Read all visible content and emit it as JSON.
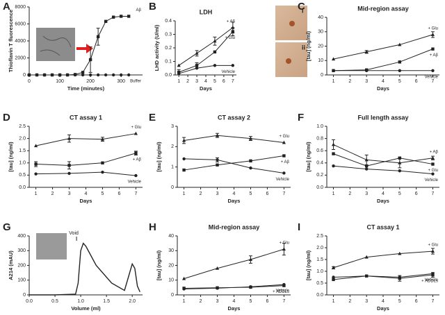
{
  "chart_data": [
    {
      "type": "line",
      "panel": "A",
      "x_label": "Time (minutes)",
      "y_label": "Thioflavin T fluorescence",
      "x": [
        0,
        25,
        50,
        75,
        100,
        125,
        150,
        175,
        200,
        225,
        250,
        275,
        300,
        325
      ],
      "xlim": [
        0,
        370
      ],
      "xticks": [
        0,
        100,
        200,
        300
      ],
      "ylim": [
        0,
        8000
      ],
      "yticks": [
        0,
        2000,
        4000,
        6000,
        8000
      ],
      "series": [
        {
          "name": "Aβ",
          "color": "#222222",
          "marker": "square",
          "values": [
            0,
            0,
            0,
            0,
            0,
            0,
            50,
            300,
            1800,
            4500,
            6300,
            6800,
            6900,
            6900
          ],
          "errors": [
            null,
            null,
            null,
            null,
            null,
            null,
            null,
            null,
            1500,
            1000,
            null,
            null,
            null,
            null
          ]
        },
        {
          "name": "Buffer",
          "color": "#222222",
          "marker": "circle",
          "values": [
            0,
            0,
            0,
            0,
            0,
            0,
            0,
            0,
            0,
            0,
            0,
            0,
            0,
            0
          ]
        }
      ]
    },
    {
      "type": "line",
      "panel": "B",
      "title": "LDH",
      "x_label": "Days",
      "y_label": "LHD activity (U/ml)",
      "insets": [
        "i",
        "ii"
      ],
      "x": [
        1,
        3,
        5,
        7
      ],
      "xlim": [
        0.6,
        7.4
      ],
      "xticks": [
        1,
        2,
        3,
        4,
        5,
        6,
        7
      ],
      "ylim": [
        0,
        0.4
      ],
      "yticks": [
        {
          "value": 0,
          "label": "0.0"
        },
        0.1,
        0.2,
        0.3,
        0.4
      ],
      "series": [
        {
          "name": "+ Aβ",
          "color": "#222222",
          "marker": "triangle",
          "values": [
            0.07,
            0.16,
            0.25,
            0.35
          ],
          "errors": [
            null,
            0.02,
            0.03,
            0.04
          ]
        },
        {
          "name": "+ Glu",
          "color": "#222222",
          "marker": "square",
          "values": [
            0.02,
            0.07,
            0.17,
            0.32
          ],
          "errors": [
            0.02,
            0.02,
            null,
            0.03
          ]
        },
        {
          "name": "Vehicle",
          "color": "#222222",
          "marker": "circle",
          "values": [
            0.01,
            0.05,
            0.07,
            0.07
          ]
        }
      ]
    },
    {
      "type": "line",
      "panel": "C",
      "title": "Mid-region assay",
      "x_label": "Days",
      "y_label": "[tau] (ng/ml)",
      "x": [
        1,
        3,
        5,
        7
      ],
      "xlim": [
        0.6,
        7.4
      ],
      "xticks": [
        1,
        2,
        3,
        4,
        5,
        6,
        7
      ],
      "ylim": [
        0,
        40
      ],
      "yticks": [
        0,
        10,
        20,
        30,
        40
      ],
      "series": [
        {
          "name": "+ Glu",
          "color": "#222222",
          "marker": "triangle",
          "values": [
            11,
            16,
            21,
            28
          ],
          "errors": [
            null,
            1,
            null,
            2
          ]
        },
        {
          "name": "+ Aβ",
          "color": "#222222",
          "marker": "square",
          "values": [
            3,
            3.5,
            9,
            18
          ]
        },
        {
          "name": "Vehicle",
          "color": "#222222",
          "marker": "circle",
          "values": [
            3,
            3,
            3,
            3
          ]
        }
      ]
    },
    {
      "type": "line",
      "panel": "D",
      "title": "CT assay 1",
      "x_label": "Days",
      "y_label": "[tau] (ng/ml)",
      "x": [
        1,
        3,
        5,
        7
      ],
      "xlim": [
        0.6,
        7.4
      ],
      "xticks": [
        1,
        2,
        3,
        4,
        5,
        6,
        7
      ],
      "ylim": [
        0,
        2.5
      ],
      "yticks": [
        {
          "value": 0,
          "label": "0.0"
        },
        0.5,
        {
          "value": 1,
          "label": "1.0"
        },
        1.5,
        {
          "value": 2,
          "label": "2.0"
        },
        2.5
      ],
      "series": [
        {
          "name": "+ Glu",
          "color": "#222222",
          "marker": "triangle",
          "values": [
            1.7,
            2.0,
            1.97,
            2.2
          ],
          "errors": [
            null,
            0.15,
            0.08,
            null
          ]
        },
        {
          "name": "+ Aβ",
          "color": "#222222",
          "marker": "square",
          "values": [
            0.95,
            0.9,
            1.0,
            1.4
          ],
          "errors": [
            0.1,
            0.15,
            null,
            0.08
          ]
        },
        {
          "name": "Vehicle",
          "color": "#222222",
          "marker": "circle",
          "values": [
            0.55,
            0.57,
            0.62,
            0.48
          ]
        }
      ]
    },
    {
      "type": "line",
      "panel": "E",
      "title": "CT assay 2",
      "x_label": "Days",
      "y_label": "[tau] (ng/ml)",
      "x": [
        1,
        3,
        5,
        7
      ],
      "xlim": [
        0.6,
        7.4
      ],
      "xticks": [
        1,
        2,
        3,
        4,
        5,
        6,
        7
      ],
      "ylim": [
        0,
        3
      ],
      "yticks": [
        0,
        1,
        2,
        3
      ],
      "series": [
        {
          "name": "+ Glu",
          "color": "#222222",
          "marker": "triangle",
          "values": [
            2.3,
            2.55,
            2.4,
            2.2
          ],
          "errors": [
            0.15,
            0.1,
            0.1,
            null
          ]
        },
        {
          "name": "+ Aβ",
          "color": "#222222",
          "marker": "square",
          "values": [
            0.85,
            1.1,
            1.3,
            1.55
          ]
        },
        {
          "name": "Vehicle",
          "color": "#222222",
          "marker": "circle",
          "values": [
            1.4,
            1.35,
            0.95,
            0.7
          ],
          "errors": [
            null,
            0.1,
            null,
            null
          ]
        }
      ]
    },
    {
      "type": "line",
      "panel": "F",
      "title": "Full length assay",
      "x_label": "Days",
      "y_label": "[tau] (ng/ml)",
      "x": [
        1,
        3,
        5,
        7
      ],
      "xlim": [
        0.6,
        7.4
      ],
      "xticks": [
        1,
        2,
        3,
        4,
        5,
        6,
        7
      ],
      "ylim": [
        0,
        1
      ],
      "yticks": [
        {
          "value": 0,
          "label": "0.0"
        },
        0.2,
        0.4,
        0.6,
        0.8,
        {
          "value": 1,
          "label": "1.0"
        }
      ],
      "series": [
        {
          "name": "+ Aβ",
          "color": "#222222",
          "marker": "triangle",
          "values": [
            0.7,
            0.45,
            0.4,
            0.48
          ],
          "errors": [
            0.08,
            0.08,
            0.08,
            0.03
          ]
        },
        {
          "name": "+ Glu",
          "color": "#222222",
          "marker": "square",
          "values": [
            0.55,
            0.35,
            0.48,
            0.38
          ]
        },
        {
          "name": "Vehicle",
          "color": "#222222",
          "marker": "circle",
          "values": [
            0.35,
            0.3,
            0.27,
            0.22
          ]
        }
      ]
    },
    {
      "type": "curve",
      "panel": "G",
      "x_label": "Volume (ml)",
      "y_label": "A214 (mAU)",
      "annotation": "Void",
      "x": [
        0,
        0.1,
        0.5,
        0.9,
        0.95,
        1.0,
        1.05,
        1.1,
        1.3,
        1.6,
        1.85,
        1.95,
        2.0,
        2.05,
        2.1,
        2.15
      ],
      "values": [
        0,
        0,
        0,
        5,
        80,
        300,
        350,
        330,
        200,
        80,
        30,
        150,
        210,
        180,
        60,
        20
      ],
      "xlim": [
        0,
        2.2
      ],
      "xticks": [
        {
          "value": 0,
          "label": "0.0"
        },
        0.5,
        {
          "value": 1,
          "label": "1.0"
        },
        1.5,
        {
          "value": 2,
          "label": "2.0"
        }
      ],
      "ylim": [
        0,
        400
      ],
      "yticks": [
        0,
        100,
        200,
        300,
        400
      ],
      "color": "#222222"
    },
    {
      "type": "line",
      "panel": "H",
      "title": "Mid-region assay",
      "x_label": "Days",
      "y_label": "[tau] (ng/ml)",
      "x": [
        1,
        3,
        5,
        7
      ],
      "xlim": [
        0.6,
        7.4
      ],
      "xticks": [
        1,
        2,
        3,
        4,
        5,
        6,
        7
      ],
      "ylim": [
        0,
        40
      ],
      "yticks": [
        0,
        10,
        20,
        30,
        40
      ],
      "series": [
        {
          "name": "+ Glu",
          "color": "#222222",
          "marker": "triangle",
          "values": [
            11,
            18,
            24,
            31
          ],
          "errors": [
            null,
            null,
            2.5,
            4
          ]
        },
        {
          "name": "Vehicle",
          "color": "#222222",
          "marker": "circle",
          "values": [
            4,
            4.5,
            5.5,
            7
          ]
        },
        {
          "name": "+ ADDLs",
          "color": "#222222",
          "marker": "square",
          "values": [
            4.5,
            4.8,
            5.2,
            6.3
          ]
        }
      ]
    },
    {
      "type": "line",
      "panel": "I",
      "title": "CT assay 1",
      "x_label": "Days",
      "y_label": "[tau] (ng/ml)",
      "x": [
        1,
        3,
        5,
        7
      ],
      "xlim": [
        0.6,
        7.4
      ],
      "xticks": [
        1,
        2,
        3,
        4,
        5,
        6,
        7
      ],
      "ylim": [
        0,
        2.5
      ],
      "yticks": [
        {
          "value": 0,
          "label": "0.0"
        },
        0.5,
        {
          "value": 1,
          "label": "1.0"
        },
        1.5,
        {
          "value": 2,
          "label": "2.0"
        },
        2.5
      ],
      "series": [
        {
          "name": "+ Glu",
          "color": "#222222",
          "marker": "triangle",
          "values": [
            1.15,
            1.6,
            1.75,
            1.85
          ],
          "errors": [
            0.05,
            null,
            null,
            0.12
          ]
        },
        {
          "name": "Vehicle",
          "color": "#222222",
          "marker": "circle",
          "values": [
            0.75,
            0.8,
            0.75,
            0.9
          ]
        },
        {
          "name": "+ ADDLs",
          "color": "#222222",
          "marker": "square",
          "values": [
            0.65,
            0.8,
            0.7,
            0.85
          ],
          "errors": [
            null,
            null,
            0.12,
            0.1
          ]
        }
      ]
    }
  ]
}
